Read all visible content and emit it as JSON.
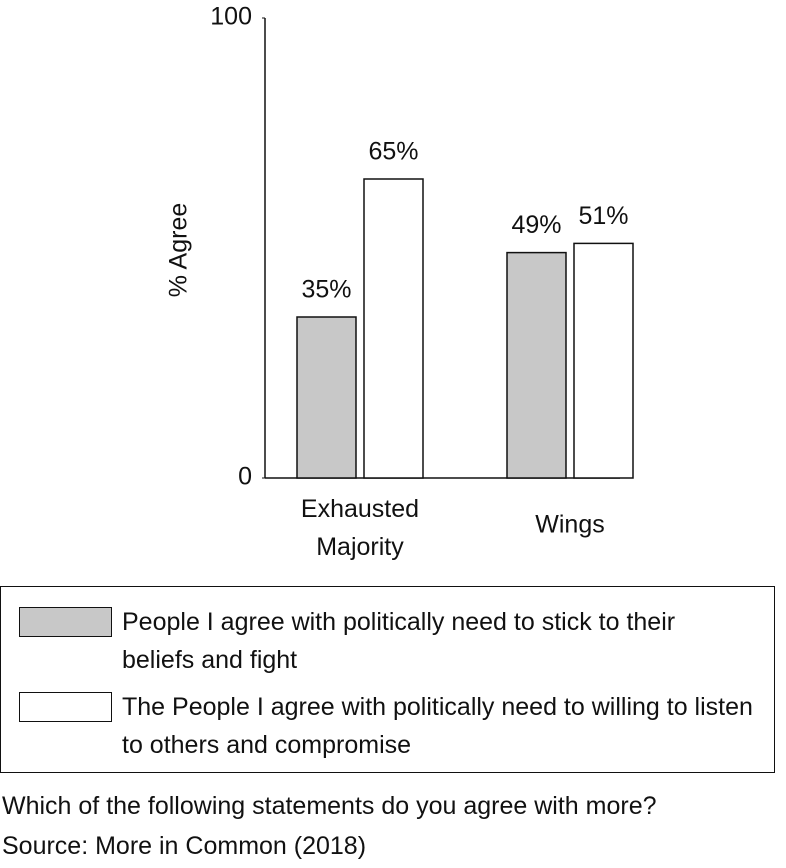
{
  "chart_data": {
    "type": "bar",
    "y_label": "% Agree",
    "categories": [
      "Exhausted Majority",
      "Wings"
    ],
    "series": [
      {
        "name": "People I agree with politically need to stick to their beliefs and fight",
        "color": "#c8c8c8",
        "values": [
          35,
          49
        ],
        "value_labels": [
          "35%",
          "49%"
        ]
      },
      {
        "name": "The People I agree with politically need to willing to listen to others and compromise",
        "color": "#ffffff",
        "values": [
          65,
          51
        ],
        "value_labels": [
          "65%",
          "51%"
        ]
      }
    ],
    "ylim": [
      0,
      100
    ],
    "yticks": [
      0,
      100
    ],
    "grid": false,
    "caption": "Which of the following statements do you agree with more?",
    "source": "Source: More in Common (2018)"
  }
}
